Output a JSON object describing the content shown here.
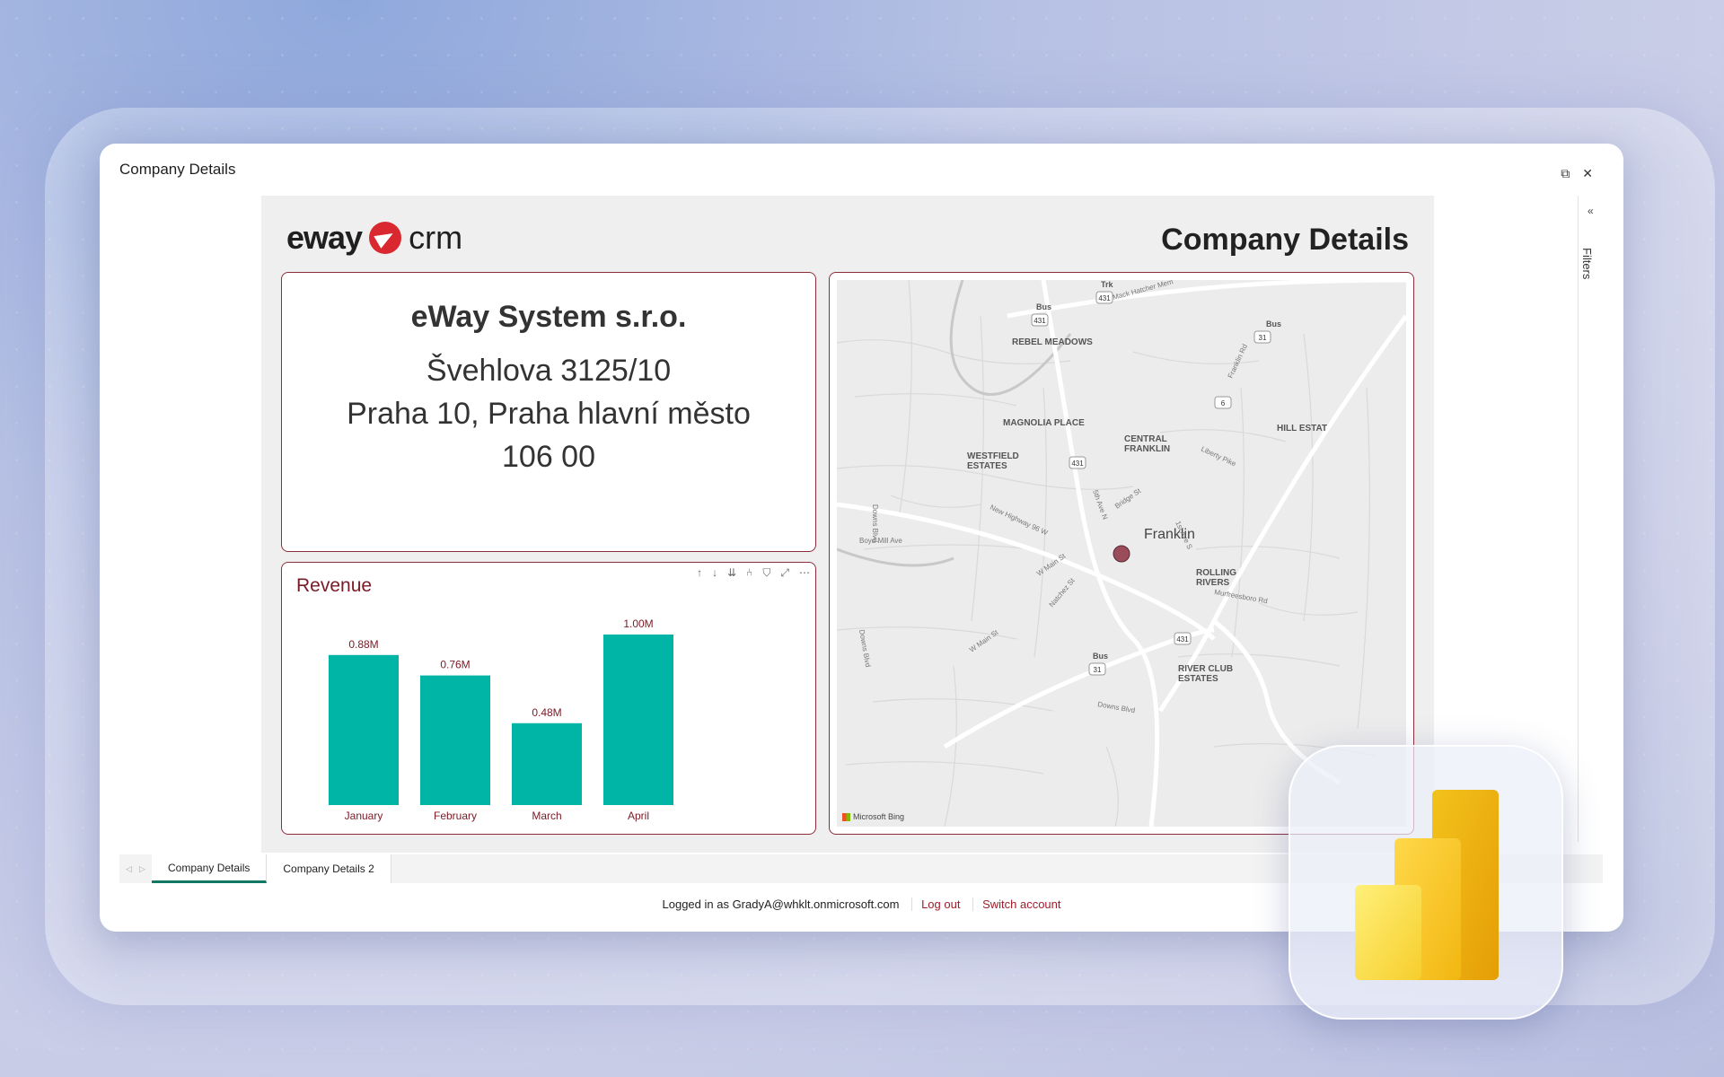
{
  "window": {
    "title": "Company Details",
    "popout_icon": "⧉",
    "close_icon": "✕"
  },
  "report": {
    "logo_word": "eway",
    "logo_product": "crm",
    "heading": "Company Details",
    "company_name": "eWay System  s.r.o.",
    "address_lines": [
      "Švehlova 3125/10",
      "Praha 10, Praha hlavní město",
      "106 00"
    ]
  },
  "revenue": {
    "title": "Revenue",
    "tools": [
      "↑",
      "↓",
      "⇊",
      "⑃",
      "⛉",
      "⤢",
      "⋯"
    ]
  },
  "chart_data": {
    "type": "bar",
    "categories": [
      "January",
      "February",
      "March",
      "April"
    ],
    "values": [
      0.88,
      0.76,
      0.48,
      1.0
    ],
    "data_labels": [
      "0.88M",
      "0.76M",
      "0.48M",
      "1.00M"
    ],
    "color": "#00b5a5",
    "label_color": "#7a1a26"
  },
  "map": {
    "labels": [
      {
        "text": "REBEL MEADOWS"
      },
      {
        "text": "MAGNOLIA PLACE"
      },
      {
        "text": "CENTRAL"
      },
      {
        "text": "FRANKLIN"
      },
      {
        "text": "WESTFIELD"
      },
      {
        "text": "ESTATES"
      },
      {
        "text": "HILL ESTAT"
      },
      {
        "text": "Franklin"
      },
      {
        "text": "ROLLING"
      },
      {
        "text": "RIVERS"
      },
      {
        "text": "RIVER CLUB"
      },
      {
        "text": "ESTATES"
      },
      {
        "text": "Bus"
      },
      {
        "text": "Trk"
      },
      {
        "text": "Bus"
      },
      {
        "text": "Bus"
      },
      {
        "text": "Mack Hatcher Mem"
      },
      {
        "text": "Franklin Rd"
      },
      {
        "text": "Liberty Pike"
      },
      {
        "text": "5th Ave N"
      },
      {
        "text": "New Highway 96 W"
      },
      {
        "text": "Bridge St"
      },
      {
        "text": "1st Ave S"
      },
      {
        "text": "Boyd Mill Ave"
      },
      {
        "text": "W Main St"
      },
      {
        "text": "Natchez St"
      },
      {
        "text": "Murfreesboro Rd"
      },
      {
        "text": "W Main St"
      },
      {
        "text": "Downs Blvd"
      },
      {
        "text": "Downs Blvd"
      },
      {
        "text": "Downs Blvd"
      }
    ],
    "shields": [
      "431",
      "431",
      "31",
      "6",
      "431",
      "431",
      "31"
    ],
    "attribution": "Microsoft Bing",
    "marker_color": "#9a4c5a"
  },
  "filters": {
    "collapse_icon": "«",
    "label": "Filters"
  },
  "tabs": [
    "Company Details",
    "Company Details 2"
  ],
  "footer": {
    "logged_in": "Logged in as GradyA@whklt.onmicrosoft.com",
    "logout": "Log out",
    "switch": "Switch account"
  }
}
